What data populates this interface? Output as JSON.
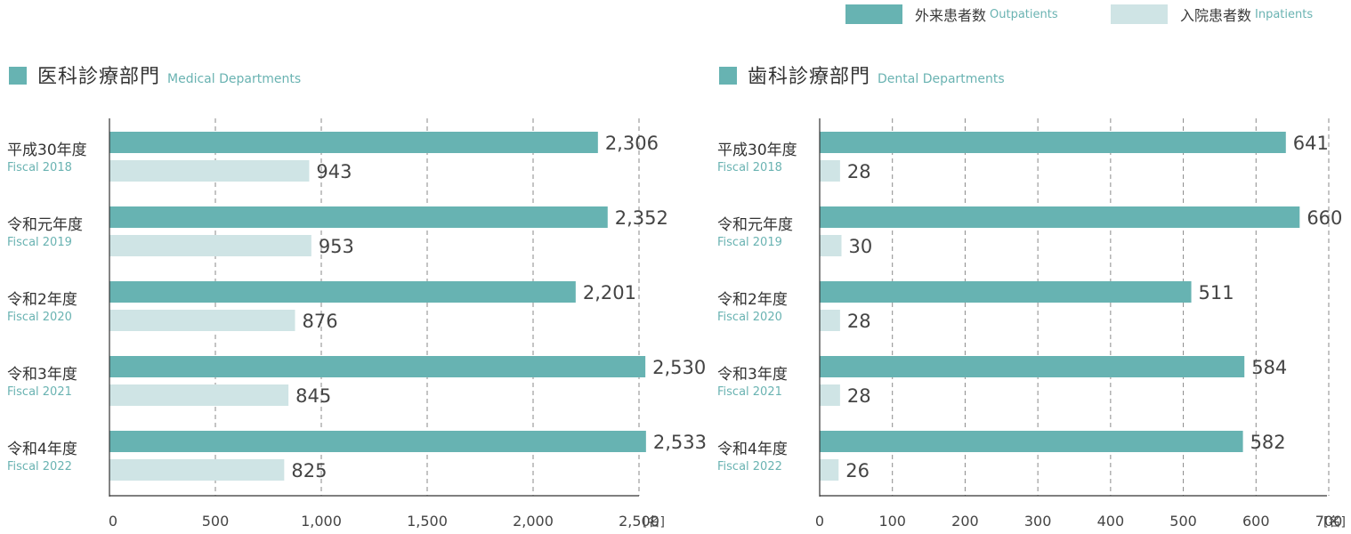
{
  "legend": {
    "outpatients_jp": "外来患者数",
    "outpatients_en": "Outpatients",
    "inpatients_jp": "入院患者数",
    "inpatients_en": "Inpatients"
  },
  "colors": {
    "outpatients": "#67b3b2",
    "inpatients": "#cfe4e5",
    "axis": "#333333",
    "grid": "#8a8a8a",
    "title_en": "#6ab3b2"
  },
  "chart_data": [
    {
      "type": "bar",
      "orientation": "horizontal",
      "title_jp": "医科診療部門",
      "title_en": "Medical Departments",
      "unit": "[名]",
      "categories": [
        {
          "jp": "平成30年度",
          "en": "Fiscal 2018"
        },
        {
          "jp": "令和元年度",
          "en": "Fiscal 2019"
        },
        {
          "jp": "令和2年度",
          "en": "Fiscal 2020"
        },
        {
          "jp": "令和3年度",
          "en": "Fiscal 2021"
        },
        {
          "jp": "令和4年度",
          "en": "Fiscal 2022"
        }
      ],
      "series": [
        {
          "name": "外来患者数 Outpatients",
          "values": [
            2306,
            2352,
            2201,
            2530,
            2533
          ],
          "labels": [
            "2,306",
            "2,352",
            "2,201",
            "2,530",
            "2,533"
          ]
        },
        {
          "name": "入院患者数 Inpatients",
          "values": [
            943,
            953,
            876,
            845,
            825
          ],
          "labels": [
            "943",
            "953",
            "876",
            "845",
            "825"
          ]
        }
      ],
      "xlim": [
        0,
        2500
      ],
      "ticks": [
        0,
        500,
        1000,
        1500,
        2000,
        2500
      ],
      "tick_labels": [
        "0",
        "500",
        "1,000",
        "1,500",
        "2,000",
        "2,500"
      ],
      "grid": true
    },
    {
      "type": "bar",
      "orientation": "horizontal",
      "title_jp": "歯科診療部門",
      "title_en": "Dental Departments",
      "unit": "[名]",
      "categories": [
        {
          "jp": "平成30年度",
          "en": "Fiscal 2018"
        },
        {
          "jp": "令和元年度",
          "en": "Fiscal 2019"
        },
        {
          "jp": "令和2年度",
          "en": "Fiscal 2020"
        },
        {
          "jp": "令和3年度",
          "en": "Fiscal 2021"
        },
        {
          "jp": "令和4年度",
          "en": "Fiscal 2022"
        }
      ],
      "series": [
        {
          "name": "外来患者数 Outpatients",
          "values": [
            641,
            660,
            511,
            584,
            582
          ],
          "labels": [
            "641",
            "660",
            "511",
            "584",
            "582"
          ]
        },
        {
          "name": "入院患者数 Inpatients",
          "values": [
            28,
            30,
            28,
            28,
            26
          ],
          "labels": [
            "28",
            "30",
            "28",
            "28",
            "26"
          ]
        }
      ],
      "xlim": [
        0,
        700
      ],
      "ticks": [
        0,
        100,
        200,
        300,
        400,
        500,
        600,
        700
      ],
      "tick_labels": [
        "0",
        "100",
        "200",
        "300",
        "400",
        "500",
        "600",
        "700"
      ],
      "grid": true
    }
  ]
}
